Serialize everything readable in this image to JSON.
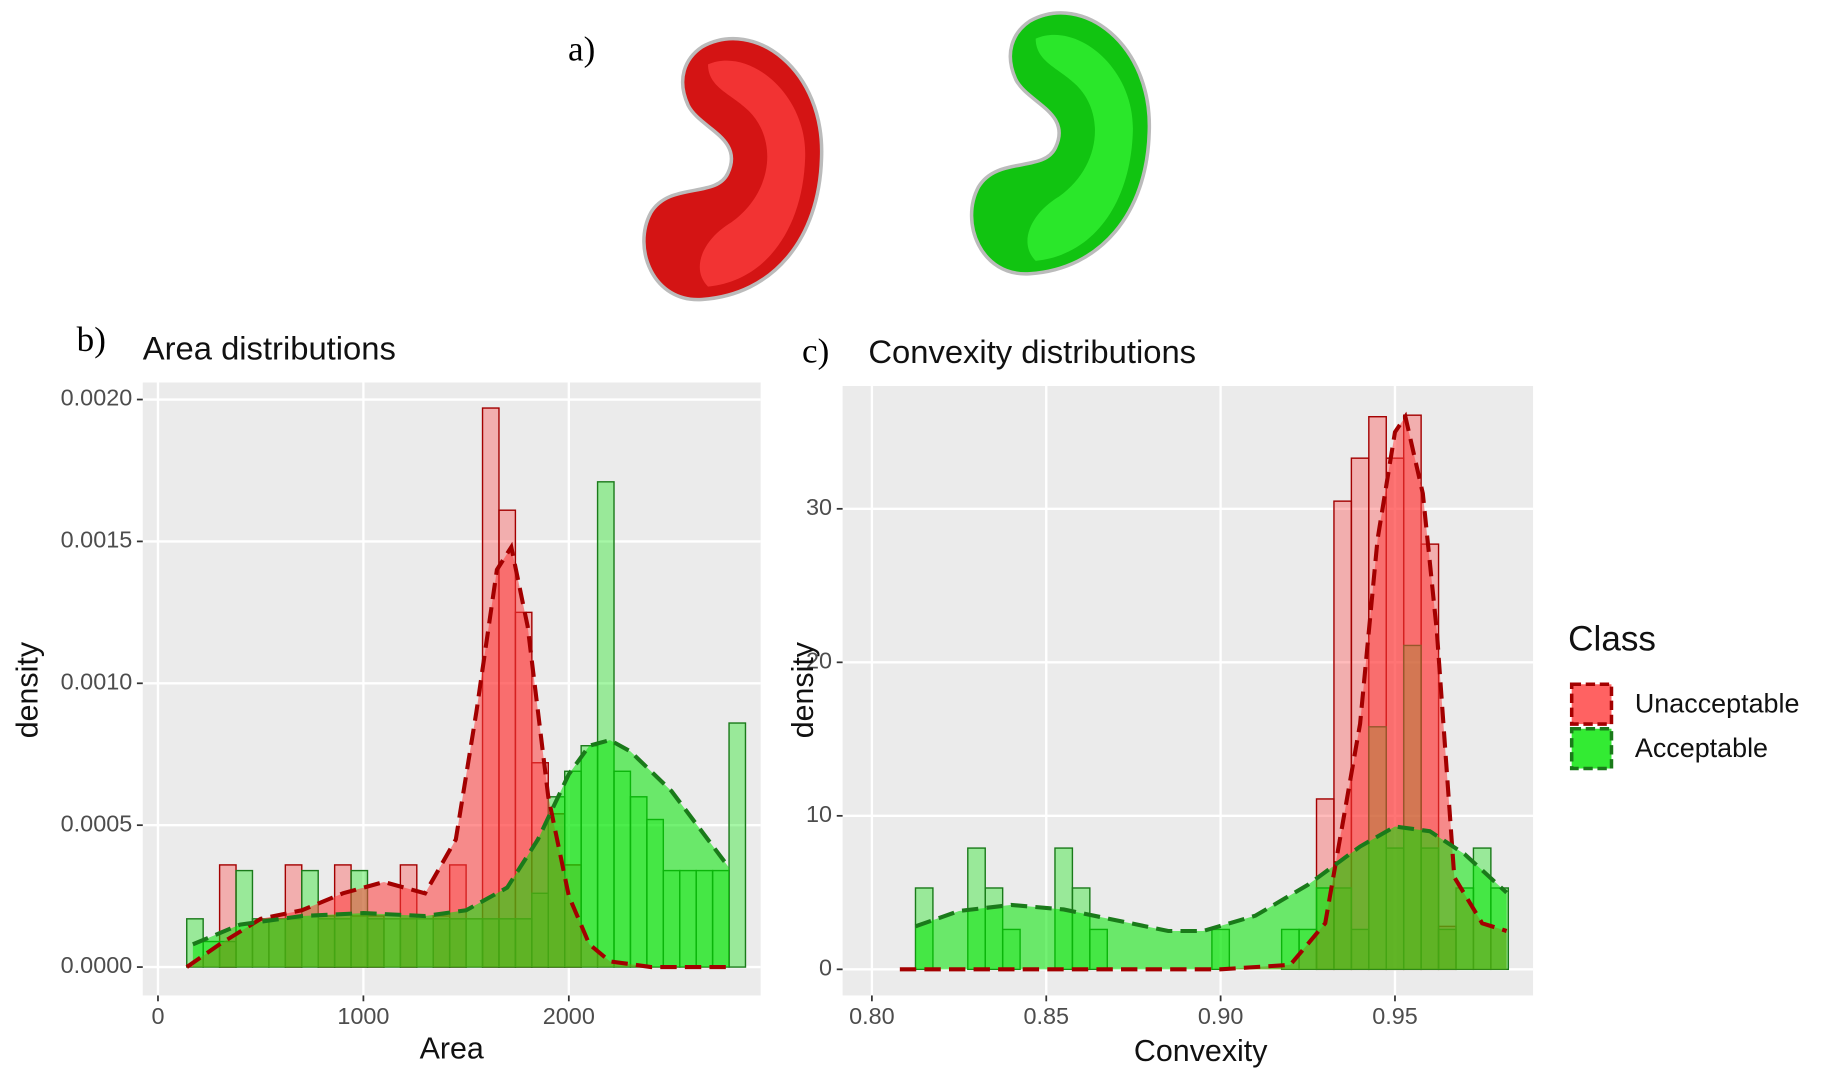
{
  "panel_labels": [
    "a)",
    "b)",
    "c)"
  ],
  "chart_data": [
    {
      "type": "histogram",
      "title": "Area distributions",
      "x_label": "Area",
      "y_label": "density",
      "legend_title": "Class",
      "grid": true,
      "xlim": [
        -74,
        2934
      ],
      "ylim": [
        -0.0001,
        0.00206
      ],
      "xticks": [
        0,
        1000,
        2000
      ],
      "yticks": [
        {
          "value": 0,
          "label": "0.0000"
        },
        {
          "value": 0.0005,
          "label": "0.0005"
        },
        {
          "value": 0.001,
          "label": "0.0010"
        },
        {
          "value": 0.0015,
          "label": "0.0015"
        },
        {
          "value": 0.002,
          "label": "0.0020"
        }
      ],
      "bins": [
        140,
        220,
        300,
        380,
        460,
        540,
        620,
        700,
        780,
        860,
        940,
        1020,
        1100,
        1180,
        1260,
        1340,
        1420,
        1500,
        1580,
        1660,
        1740,
        1820,
        1900,
        1980,
        2060,
        2140,
        2220,
        2300,
        2380,
        2460,
        2540,
        2620,
        2700,
        2780,
        2860
      ],
      "series": [
        {
          "name": "Unacceptable",
          "color": "#ff3b3b",
          "line_color": "#a30000",
          "values": [
            0,
            0,
            0.00036,
            0,
            0,
            0,
            0.00036,
            0,
            0.00018,
            0.00036,
            0.00018,
            0.00018,
            0,
            0.00036,
            0,
            0.00018,
            0.00036,
            0,
            0.00197,
            0.00161,
            0.00125,
            0.00072,
            0.00054,
            0.00036,
            0,
            0,
            0,
            0,
            0,
            0,
            0,
            0,
            0,
            0
          ],
          "density_x": [
            140,
            300,
            500,
            700,
            900,
            1100,
            1300,
            1450,
            1550,
            1650,
            1720,
            1800,
            1900,
            2000,
            2100,
            2200,
            2400,
            2780
          ],
          "density": [
            0,
            8e-05,
            0.00017,
            0.0002,
            0.00026,
            0.0003,
            0.00026,
            0.00045,
            0.0009,
            0.0014,
            0.00148,
            0.0012,
            0.0006,
            0.00025,
            8e-05,
            2e-05,
            0,
            0
          ]
        },
        {
          "name": "Acceptable",
          "color": "#00e600",
          "line_color": "#1a7a1a",
          "values": [
            0.00017,
            9e-05,
            9e-05,
            0.00034,
            0.00017,
            0.00017,
            0.00017,
            0.00034,
            0.00017,
            0.00017,
            0.00034,
            0.00017,
            0.00017,
            0.00017,
            0.00017,
            0.00017,
            0.00017,
            0.00017,
            0.00017,
            0.00017,
            0.00017,
            0.00026,
            0.0006,
            0.00069,
            0.00078,
            0.00171,
            0.00069,
            0.0006,
            0.00052,
            0.00034,
            0.00034,
            0.00034,
            0.00034,
            0.00086
          ],
          "density_x": [
            170,
            400,
            700,
            1000,
            1300,
            1500,
            1700,
            1850,
            2000,
            2100,
            2200,
            2300,
            2500,
            2780
          ],
          "density": [
            8e-05,
            0.00015,
            0.00018,
            0.00019,
            0.00018,
            0.0002,
            0.00028,
            0.00045,
            0.00068,
            0.00078,
            0.0008,
            0.00076,
            0.00062,
            0.00035
          ]
        }
      ]
    },
    {
      "type": "histogram",
      "title": "Convexity distributions",
      "x_label": "Convexity",
      "y_label": "density",
      "grid": true,
      "xlim": [
        0.7916,
        0.9896
      ],
      "ylim": [
        -1.7,
        38
      ],
      "xticks": [
        {
          "value": 0.8,
          "label": "0.80"
        },
        0.85,
        {
          "value": 0.9,
          "label": "0.90"
        },
        0.95
      ],
      "yticks": [
        0,
        10,
        20,
        30
      ],
      "bins": [
        0.8125,
        0.8175,
        0.8225,
        0.8275,
        0.8325,
        0.8375,
        0.8425,
        0.8475,
        0.8525,
        0.8575,
        0.8625,
        0.8675,
        0.8725,
        0.8775,
        0.8825,
        0.8875,
        0.8925,
        0.8975,
        0.9025,
        0.9075,
        0.9125,
        0.9175,
        0.9225,
        0.9275,
        0.9325,
        0.9375,
        0.9425,
        0.9475,
        0.9525,
        0.9575,
        0.9625,
        0.9675,
        0.9725,
        0.9775,
        0.9825
      ],
      "series": [
        {
          "name": "Unacceptable",
          "color": "#ff3b3b",
          "line_color": "#a30000",
          "values": [
            0,
            0,
            0,
            0,
            0,
            0,
            0,
            0,
            0,
            0,
            0,
            0,
            0,
            0,
            0,
            0,
            0,
            0,
            0,
            0,
            0,
            0,
            0,
            11.1,
            30.5,
            33.3,
            36,
            33.3,
            36.1,
            27.7,
            2.8,
            0,
            0,
            0
          ],
          "density_x": [
            0.808,
            0.9,
            0.92,
            0.93,
            0.94,
            0.945,
            0.95,
            0.953,
            0.958,
            0.962,
            0.967,
            0.975,
            0.982
          ],
          "density": [
            0,
            0,
            0.3,
            3,
            16,
            28,
            35,
            36,
            31,
            22,
            6,
            3,
            2.5
          ]
        },
        {
          "name": "Acceptable",
          "color": "#00e600",
          "line_color": "#1a7a1a",
          "values": [
            5.3,
            0,
            0,
            7.9,
            5.3,
            2.6,
            0,
            0,
            7.9,
            5.3,
            2.6,
            0,
            0,
            0,
            0,
            0,
            0,
            2.6,
            0,
            0,
            0,
            2.6,
            2.6,
            5.3,
            5.3,
            2.6,
            15.8,
            7.9,
            21.1,
            7.9,
            2.6,
            5.3,
            7.9,
            5.3
          ],
          "density_x": [
            0.8125,
            0.825,
            0.84,
            0.855,
            0.87,
            0.885,
            0.895,
            0.91,
            0.925,
            0.94,
            0.95,
            0.96,
            0.97,
            0.982
          ],
          "density": [
            2.8,
            3.8,
            4.2,
            3.9,
            3.2,
            2.5,
            2.5,
            3.5,
            5.5,
            8,
            9.3,
            9,
            7.5,
            5
          ]
        }
      ]
    }
  ]
}
